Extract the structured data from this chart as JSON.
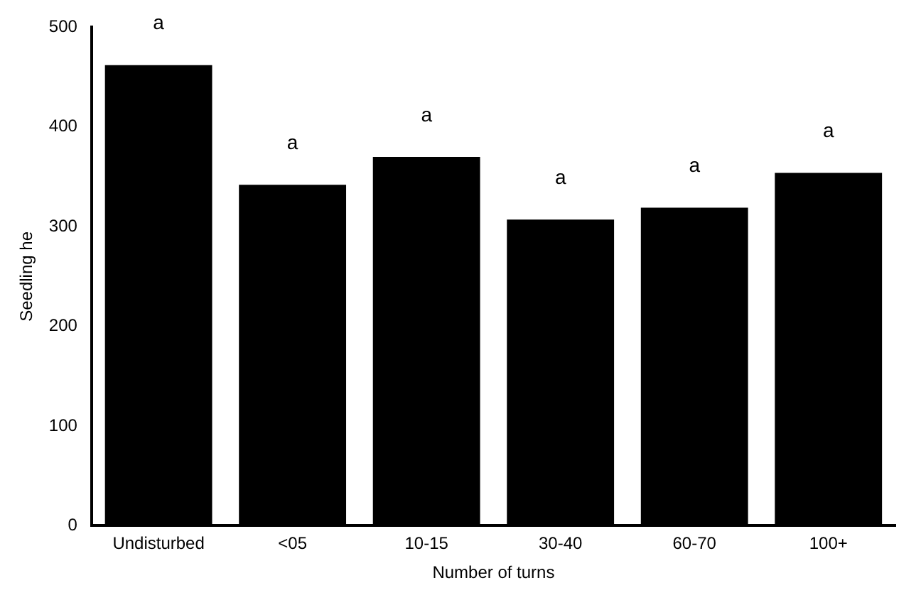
{
  "chart_data": {
    "type": "bar",
    "xlabel": "Number of turns",
    "ylabel": "Seedling he",
    "categories": [
      "Undisturbed",
      "<05",
      "10-15",
      "30-40",
      "60-70",
      "100+"
    ],
    "values": [
      462,
      342,
      370,
      307,
      319,
      354
    ],
    "color": "#000000",
    "ylim": [
      0,
      500
    ],
    "yticks": [
      0,
      100,
      200,
      300,
      400,
      500
    ],
    "grid": false,
    "legend": false,
    "annotations": [
      {
        "text": "a",
        "x": "Undisturbed",
        "y": 462
      },
      {
        "text": "a",
        "x": "<05",
        "y": 342
      },
      {
        "text": "a",
        "x": "10-15",
        "y": 370
      },
      {
        "text": "a",
        "x": "30-40",
        "y": 307
      },
      {
        "text": "a",
        "x": "60-70",
        "y": 319
      },
      {
        "text": "a",
        "x": "100+",
        "y": 354
      }
    ]
  }
}
